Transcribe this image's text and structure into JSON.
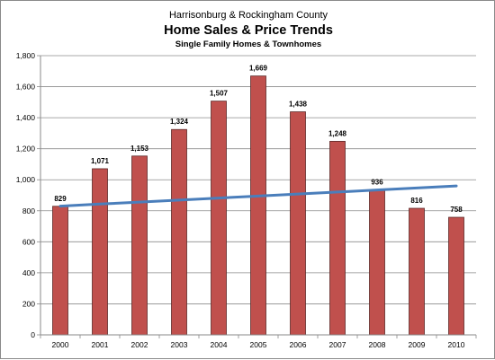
{
  "chart_data": {
    "type": "bar",
    "supertitle": "Harrisonburg & Rockingham County",
    "title": "Home Sales & Price Trends",
    "subtitle": "Single Family Homes & Townhomes",
    "xlabel": "",
    "ylabel": "",
    "categories": [
      "2000",
      "2001",
      "2002",
      "2003",
      "2004",
      "2005",
      "2006",
      "2007",
      "2008",
      "2009",
      "2010"
    ],
    "series": [
      {
        "type": "bar",
        "values": [
          829,
          1071,
          1153,
          1324,
          1507,
          1669,
          1438,
          1248,
          936,
          816,
          758
        ],
        "data_labels": [
          "829",
          "1,071",
          "1,153",
          "1,324",
          "1,507",
          "1,669",
          "1,438",
          "1,248",
          "936",
          "816",
          "758"
        ],
        "color": "#c0504d"
      },
      {
        "type": "line",
        "values": [
          830,
          843,
          856,
          869,
          882,
          895,
          908,
          921,
          934,
          947,
          960
        ],
        "color": "#4a7ebb"
      }
    ],
    "ylim": [
      0,
      1800
    ],
    "yticks": [
      0,
      200,
      400,
      600,
      800,
      1000,
      1200,
      1400,
      1600,
      1800
    ],
    "ytick_labels": [
      "0",
      "200",
      "400",
      "600",
      "800",
      "1,000",
      "1,200",
      "1,400",
      "1,600",
      "1,800"
    ],
    "grid": true,
    "legend": "none"
  }
}
